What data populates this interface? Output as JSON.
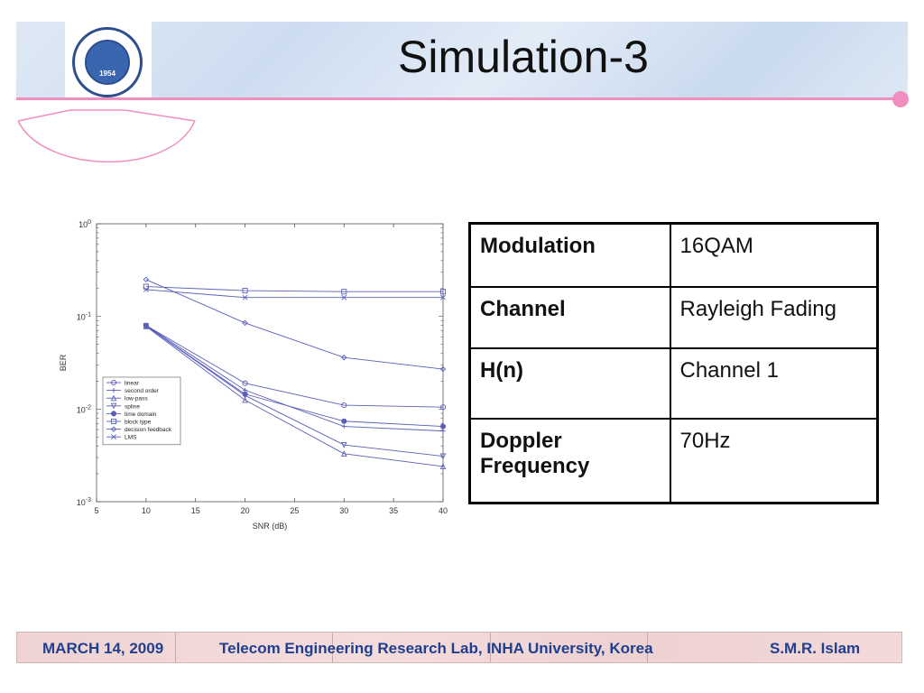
{
  "slide": {
    "title": "Simulation-3"
  },
  "logo": {
    "seal_text": "INHA UNIVERSITY",
    "seal_hangul": "인 하 대 학 교",
    "year": "1954"
  },
  "table": {
    "rows": [
      {
        "key": "Modulation",
        "value": "16QAM"
      },
      {
        "key": "Channel",
        "value": "Rayleigh Fading"
      },
      {
        "key": "H(n)",
        "value": "Channel 1"
      },
      {
        "key": "Doppler Frequency",
        "value": "70Hz"
      }
    ]
  },
  "footer": {
    "date": "MARCH 14, 2009",
    "org": "Telecom Engineering Research Lab, INHA University, Korea",
    "author": "S.M.R. Islam"
  },
  "colors": {
    "accent_pink": "#f08fbf",
    "footer_text": "#1f3f90",
    "series_line": "#5a5fb8"
  },
  "chart_data": {
    "type": "line",
    "xlabel": "SNR (dB)",
    "ylabel": "BER",
    "xlim": [
      5,
      40
    ],
    "ylim": [
      0.001,
      1
    ],
    "yscale": "log",
    "grid": false,
    "legend_position": "center-left",
    "x_ticks": [
      "5",
      "10",
      "15",
      "20",
      "25",
      "30",
      "35",
      "40"
    ],
    "y_ticks": [
      {
        "base": "10",
        "exp": "0",
        "value": 1
      },
      {
        "base": "10",
        "exp": "-1",
        "value": 0.1
      },
      {
        "base": "10",
        "exp": "-2",
        "value": 0.01
      },
      {
        "base": "10",
        "exp": "-3",
        "value": 0.001
      }
    ],
    "x": [
      10,
      20,
      30,
      40
    ],
    "series": [
      {
        "name": "linear",
        "marker": "circle",
        "values": [
          0.08,
          0.019,
          0.011,
          0.0105
        ]
      },
      {
        "name": "second order",
        "marker": "plus",
        "values": [
          0.08,
          0.016,
          0.0065,
          0.0058
        ]
      },
      {
        "name": "low-pass",
        "marker": "triangle-up",
        "values": [
          0.078,
          0.0125,
          0.0033,
          0.0024
        ]
      },
      {
        "name": "spline",
        "marker": "triangle-down",
        "values": [
          0.079,
          0.014,
          0.0041,
          0.0031
        ]
      },
      {
        "name": "time domain",
        "marker": "dot",
        "values": [
          0.079,
          0.0145,
          0.0074,
          0.0065
        ]
      },
      {
        "name": "block type",
        "marker": "square",
        "values": [
          0.21,
          0.19,
          0.185,
          0.185
        ]
      },
      {
        "name": "decision feedback",
        "marker": "diamond",
        "values": [
          0.25,
          0.085,
          0.036,
          0.027
        ]
      },
      {
        "name": "LMS",
        "marker": "x",
        "values": [
          0.195,
          0.16,
          0.16,
          0.16
        ]
      }
    ]
  }
}
